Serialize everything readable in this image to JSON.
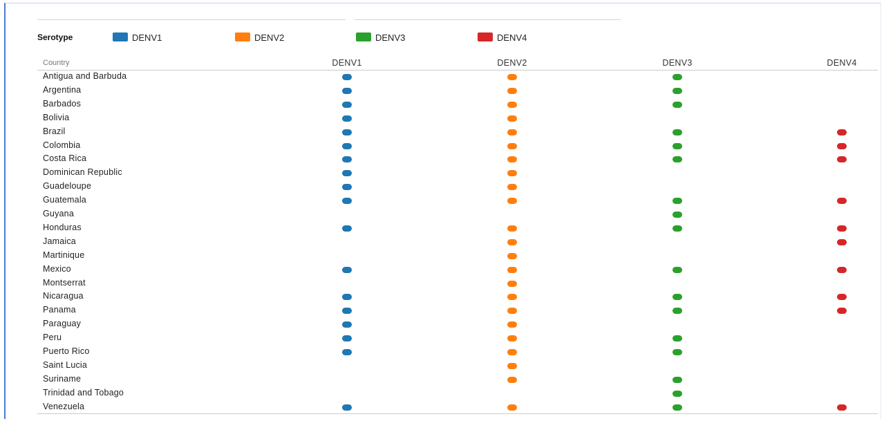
{
  "legend": {
    "title": "Serotype",
    "items": [
      {
        "label": "DENV1",
        "color": "#1f77b4"
      },
      {
        "label": "DENV2",
        "color": "#ff7f0e"
      },
      {
        "label": "DENV3",
        "color": "#2ca02c"
      },
      {
        "label": "DENV4",
        "color": "#d62728"
      }
    ]
  },
  "chart_data": {
    "type": "table",
    "row_header": "Country",
    "columns": [
      "DENV1",
      "DENV2",
      "DENV3",
      "DENV4"
    ],
    "colors": [
      "#1f77b4",
      "#ff7f0e",
      "#2ca02c",
      "#d62728"
    ],
    "rows": [
      {
        "country": "Antigua and Barbuda",
        "presence": [
          1,
          1,
          1,
          0
        ]
      },
      {
        "country": "Argentina",
        "presence": [
          1,
          1,
          1,
          0
        ]
      },
      {
        "country": "Barbados",
        "presence": [
          1,
          1,
          1,
          0
        ]
      },
      {
        "country": "Bolivia",
        "presence": [
          1,
          1,
          0,
          0
        ]
      },
      {
        "country": "Brazil",
        "presence": [
          1,
          1,
          1,
          1
        ]
      },
      {
        "country": "Colombia",
        "presence": [
          1,
          1,
          1,
          1
        ]
      },
      {
        "country": "Costa Rica",
        "presence": [
          1,
          1,
          1,
          1
        ]
      },
      {
        "country": "Dominican Republic",
        "presence": [
          1,
          1,
          0,
          0
        ]
      },
      {
        "country": "Guadeloupe",
        "presence": [
          1,
          1,
          0,
          0
        ]
      },
      {
        "country": "Guatemala",
        "presence": [
          1,
          1,
          1,
          1
        ]
      },
      {
        "country": "Guyana",
        "presence": [
          0,
          0,
          1,
          0
        ]
      },
      {
        "country": "Honduras",
        "presence": [
          1,
          1,
          1,
          1
        ]
      },
      {
        "country": "Jamaica",
        "presence": [
          0,
          1,
          0,
          1
        ]
      },
      {
        "country": "Martinique",
        "presence": [
          0,
          1,
          0,
          0
        ]
      },
      {
        "country": "Mexico",
        "presence": [
          1,
          1,
          1,
          1
        ]
      },
      {
        "country": "Montserrat",
        "presence": [
          0,
          1,
          0,
          0
        ]
      },
      {
        "country": "Nicaragua",
        "presence": [
          1,
          1,
          1,
          1
        ]
      },
      {
        "country": "Panama",
        "presence": [
          1,
          1,
          1,
          1
        ]
      },
      {
        "country": "Paraguay",
        "presence": [
          1,
          1,
          0,
          0
        ]
      },
      {
        "country": "Peru",
        "presence": [
          1,
          1,
          1,
          0
        ]
      },
      {
        "country": "Puerto Rico",
        "presence": [
          1,
          1,
          1,
          0
        ]
      },
      {
        "country": "Saint Lucia",
        "presence": [
          0,
          1,
          0,
          0
        ]
      },
      {
        "country": "Suriname",
        "presence": [
          0,
          1,
          1,
          0
        ]
      },
      {
        "country": "Trinidad and Tobago",
        "presence": [
          0,
          0,
          1,
          0
        ]
      },
      {
        "country": "Venezuela",
        "presence": [
          1,
          1,
          1,
          1
        ]
      }
    ]
  }
}
